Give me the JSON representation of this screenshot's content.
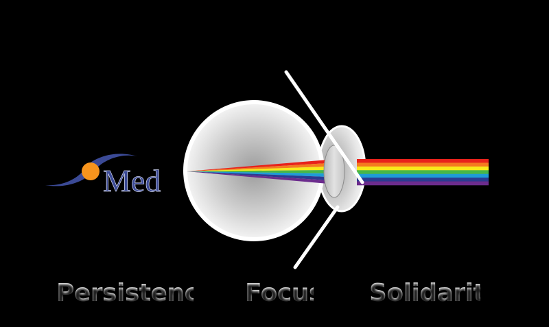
{
  "logo": {
    "text": "Med",
    "swoosh_color": "#3b4a96",
    "dot_color": "#f7941d"
  },
  "words": [
    "Persistence",
    "Focus",
    "Solidarity"
  ],
  "spectrum_colors": [
    "#e8221b",
    "#f47b20",
    "#f7ea1c",
    "#48b649",
    "#1e9bd7",
    "#2b3a91",
    "#6c2c8d"
  ],
  "colors": {
    "background": "#000000",
    "eye_outline": "#ffffff",
    "lens": "#d9d9d9"
  }
}
